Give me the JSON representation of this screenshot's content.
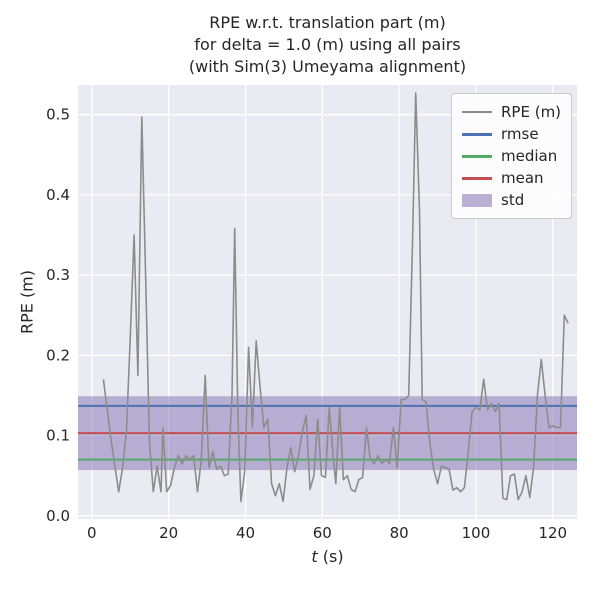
{
  "colors": {
    "figure_bg": "#ffffff",
    "plot_bg": "#eaeaf2",
    "grid": "#ffffff",
    "text": "#262626",
    "rpe_line": "#8c8c8c",
    "rmse_line": "#4c72b0",
    "median_line": "#55a868",
    "mean_line": "#c44e52",
    "std_band": "#8172b2"
  },
  "chart_data": {
    "type": "line",
    "title": "RPE w.r.t. translation part (m)\nfor delta = 1.0 (m) using all pairs\n(with Sim(3) Umeyama alignment)",
    "ylabel": "RPE (m)",
    "xlabel": {
      "var": "t",
      "unit": " (s)"
    },
    "xlim": [
      -3.6,
      126.3
    ],
    "ylim": [
      -0.004,
      0.537
    ],
    "xticks": [
      0,
      20,
      40,
      60,
      80,
      100,
      120
    ],
    "yticks": [
      0.0,
      0.1,
      0.2,
      0.3,
      0.4,
      0.5
    ],
    "ytick_labels": [
      "0.0",
      "0.1",
      "0.2",
      "0.3",
      "0.4",
      "0.5"
    ],
    "grid": true,
    "legend_position": "upper right",
    "series": {
      "rpe": {
        "name": "RPE (m)",
        "color": "#8c8c8c",
        "t": [
          3,
          5,
          7,
          8,
          9,
          10,
          11,
          12,
          13,
          14,
          15,
          16,
          17,
          18,
          18.5,
          19.5,
          20.5,
          21.5,
          22.5,
          23.5,
          24.5,
          25.5,
          26.5,
          27.5,
          28.5,
          29.5,
          30.5,
          31.5,
          32.5,
          33.5,
          34.5,
          35.5,
          36.5,
          37.2,
          38,
          38.8,
          39.8,
          40.8,
          41.8,
          42.8,
          43.8,
          44.8,
          45.8,
          46.8,
          47.8,
          48.8,
          49.8,
          50.8,
          51.8,
          52.8,
          53.8,
          54.8,
          55.8,
          56.8,
          57.8,
          58.8,
          59.8,
          60.8,
          61.8,
          62.8,
          63.5,
          64.5,
          65.5,
          66.5,
          67.5,
          68.5,
          69.5,
          70.5,
          71.5,
          72.5,
          73.5,
          74.5,
          75.5,
          76.5,
          77.5,
          78.5,
          79.5,
          80.5,
          81.5,
          82.5,
          83.5,
          84.3,
          85.3,
          86,
          87,
          88,
          89,
          90,
          91,
          92,
          93,
          94,
          95,
          96,
          97,
          98,
          99,
          100,
          101,
          102,
          103,
          104,
          105,
          106,
          107,
          108,
          109,
          110,
          111,
          112,
          113,
          114,
          115,
          116,
          117,
          118,
          119,
          120,
          121,
          122,
          123,
          124
        ],
        "y": [
          0.17,
          0.095,
          0.03,
          0.06,
          0.105,
          0.22,
          0.35,
          0.175,
          0.497,
          0.3,
          0.09,
          0.03,
          0.062,
          0.03,
          0.11,
          0.03,
          0.038,
          0.06,
          0.075,
          0.065,
          0.075,
          0.07,
          0.075,
          0.03,
          0.07,
          0.175,
          0.06,
          0.08,
          0.058,
          0.062,
          0.05,
          0.052,
          0.15,
          0.358,
          0.13,
          0.018,
          0.055,
          0.21,
          0.11,
          0.218,
          0.16,
          0.11,
          0.12,
          0.04,
          0.025,
          0.04,
          0.018,
          0.06,
          0.085,
          0.055,
          0.075,
          0.105,
          0.125,
          0.033,
          0.05,
          0.12,
          0.05,
          0.048,
          0.135,
          0.075,
          0.04,
          0.135,
          0.045,
          0.05,
          0.033,
          0.03,
          0.045,
          0.048,
          0.11,
          0.07,
          0.065,
          0.075,
          0.065,
          0.07,
          0.065,
          0.11,
          0.06,
          0.145,
          0.145,
          0.15,
          0.345,
          0.527,
          0.38,
          0.145,
          0.142,
          0.09,
          0.058,
          0.04,
          0.062,
          0.06,
          0.058,
          0.032,
          0.035,
          0.03,
          0.035,
          0.08,
          0.13,
          0.135,
          0.132,
          0.17,
          0.132,
          0.14,
          0.13,
          0.14,
          0.022,
          0.02,
          0.05,
          0.052,
          0.02,
          0.03,
          0.05,
          0.023,
          0.06,
          0.15,
          0.195,
          0.15,
          0.11,
          0.112,
          0.11,
          0.11,
          0.25,
          0.24
        ]
      },
      "rmse": {
        "name": "rmse",
        "color": "#4c72b0",
        "value": 0.137
      },
      "median": {
        "name": "median",
        "color": "#55a868",
        "value": 0.07
      },
      "mean": {
        "name": "mean",
        "color": "#c44e52",
        "value": 0.103
      },
      "std": {
        "name": "std",
        "color": "#8172b2",
        "band": [
          0.057,
          0.149
        ]
      }
    }
  }
}
